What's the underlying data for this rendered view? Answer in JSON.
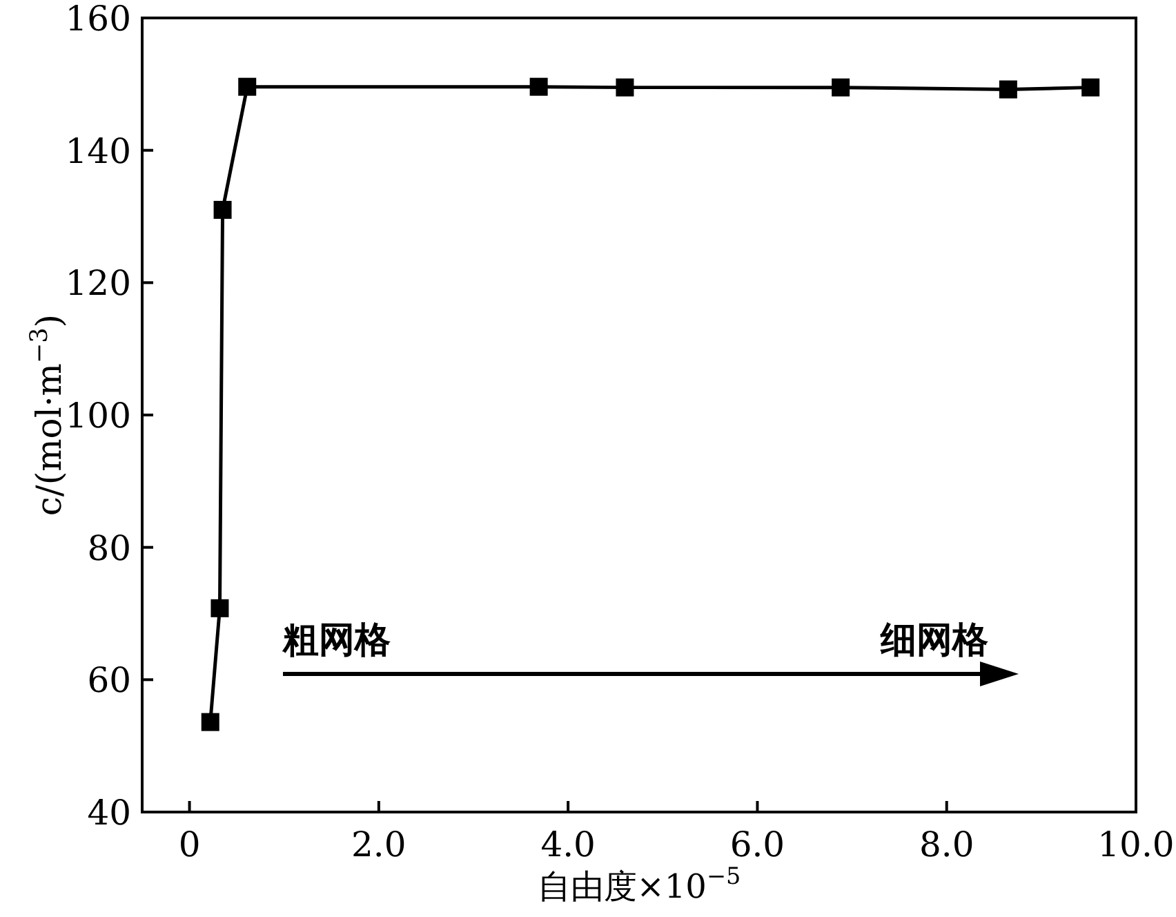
{
  "chart_data": {
    "type": "line",
    "xlabel": "自由度×10$^{−5}$",
    "ylabel": "c/(mol·m$^{−3}$)",
    "x": [
      0.22,
      0.32,
      0.35,
      0.61,
      3.69,
      4.6,
      6.88,
      8.65,
      9.52
    ],
    "series": [
      {
        "color": "#000000",
        "values": [
          53.6,
          70.8,
          131,
          149.6,
          149.6,
          149.5,
          149.5,
          149.2,
          149.5
        ]
      }
    ],
    "xlim": [
      -0.5,
      10
    ],
    "xticks": [
      {
        "value": 0,
        "label": "0"
      },
      {
        "value": 2,
        "label": "2.0"
      },
      {
        "value": 4,
        "label": "4.0"
      },
      {
        "value": 6,
        "label": "6.0"
      },
      {
        "value": 8,
        "label": "8.0"
      },
      {
        "value": 10,
        "label": "10.0"
      }
    ],
    "ylim": [
      40,
      160
    ],
    "yticks": [
      40,
      60,
      80,
      100,
      120,
      140,
      160
    ],
    "marker": "square",
    "line_style": "solid",
    "grid": false,
    "annotations": [
      "粗网格",
      "细网格"
    ]
  }
}
